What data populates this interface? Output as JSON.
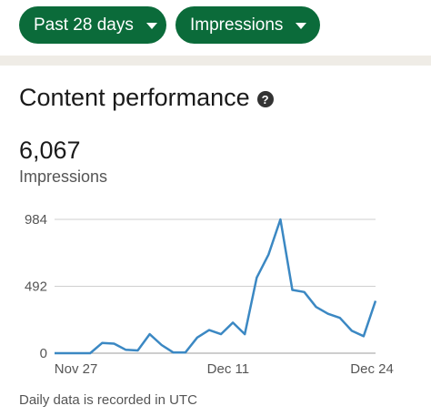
{
  "filters": {
    "range_label": "Past 28 days",
    "metric_label": "Impressions"
  },
  "section": {
    "title": "Content performance",
    "help_glyph": "?"
  },
  "summary": {
    "total": "6,067",
    "label": "Impressions"
  },
  "chart_data": {
    "type": "line",
    "y_ticks": [
      "984",
      "492",
      "0"
    ],
    "ylim": [
      0,
      984
    ],
    "x_tick_labels": [
      "Nov 27",
      "Dec 11",
      "Dec 24"
    ],
    "series": [
      {
        "color": "#3b88c3",
        "values": [
          0,
          0,
          0,
          0,
          75,
          70,
          25,
          20,
          140,
          60,
          5,
          5,
          115,
          170,
          140,
          225,
          140,
          555,
          725,
          984,
          465,
          450,
          340,
          290,
          260,
          165,
          125,
          385
        ]
      }
    ],
    "grid": true
  },
  "footnote": "Daily data is recorded in UTC"
}
